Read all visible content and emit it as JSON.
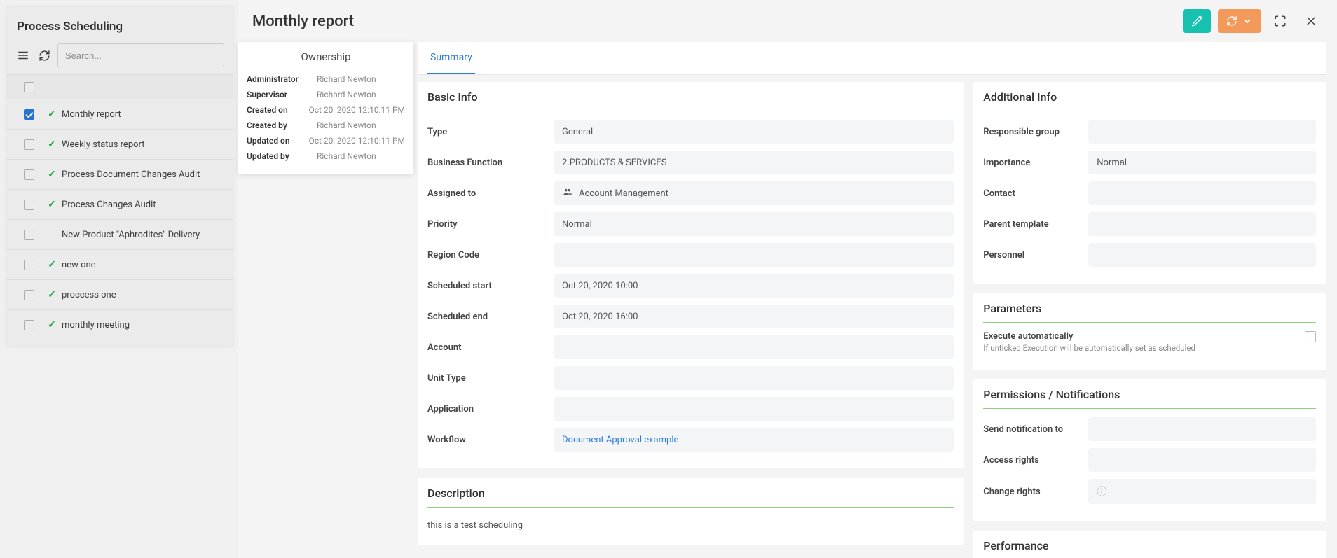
{
  "leftPanel": {
    "title": "Process Scheduling",
    "searchPlaceholder": "Search...",
    "rows": [
      {
        "label": "Monthly report",
        "checked": true,
        "status": "ok"
      },
      {
        "label": "Weekly status report",
        "checked": false,
        "status": "ok"
      },
      {
        "label": "Process Document Changes Audit",
        "checked": false,
        "status": "ok"
      },
      {
        "label": "Process Changes Audit",
        "checked": false,
        "status": "ok"
      },
      {
        "label": "New Product \"Aphrodites\" Delivery",
        "checked": false,
        "status": ""
      },
      {
        "label": "new one",
        "checked": false,
        "status": "ok"
      },
      {
        "label": "proccess one",
        "checked": false,
        "status": "ok"
      },
      {
        "label": "monthly meeting",
        "checked": false,
        "status": "ok"
      }
    ]
  },
  "drawer": {
    "title": "Monthly report",
    "tabs": {
      "summary": "Summary"
    }
  },
  "ownership": {
    "title": "Ownership",
    "rows": [
      {
        "label": "Administrator",
        "value": "Richard Newton"
      },
      {
        "label": "Supervisor",
        "value": "Richard Newton"
      },
      {
        "label": "Created on",
        "value": "Oct 20, 2020 12:10:11 PM"
      },
      {
        "label": "Created by",
        "value": "Richard Newton"
      },
      {
        "label": "Updated on",
        "value": "Oct 20, 2020 12:10:11 PM"
      },
      {
        "label": "Updated by",
        "value": "Richard Newton"
      }
    ]
  },
  "basicInfo": {
    "title": "Basic Info",
    "type": {
      "label": "Type",
      "value": "General"
    },
    "businessFunction": {
      "label": "Business Function",
      "value": "2.PRODUCTS & SERVICES"
    },
    "assignedTo": {
      "label": "Assigned to",
      "value": "Account Management"
    },
    "priority": {
      "label": "Priority",
      "value": "Normal"
    },
    "regionCode": {
      "label": "Region Code",
      "value": ""
    },
    "scheduledStart": {
      "label": "Scheduled start",
      "value": "Oct 20, 2020 10:00"
    },
    "scheduledEnd": {
      "label": "Scheduled end",
      "value": "Oct 20, 2020 16:00"
    },
    "account": {
      "label": "Account",
      "value": ""
    },
    "unitType": {
      "label": "Unit Type",
      "value": ""
    },
    "application": {
      "label": "Application",
      "value": ""
    },
    "workflow": {
      "label": "Workflow",
      "value": "Document Approval example"
    }
  },
  "description": {
    "title": "Description",
    "text": "this is a test scheduling"
  },
  "additionalInfo": {
    "title": "Additional Info",
    "responsibleGroup": {
      "label": "Responsible group",
      "value": ""
    },
    "importance": {
      "label": "Importance",
      "value": "Normal"
    },
    "contact": {
      "label": "Contact",
      "value": ""
    },
    "parentTemplate": {
      "label": "Parent template",
      "value": ""
    },
    "personnel": {
      "label": "Personnel",
      "value": ""
    }
  },
  "parameters": {
    "title": "Parameters",
    "executeAuto": {
      "label": "Execute automatically",
      "note": "If unticked Execution will be automatically set as scheduled"
    }
  },
  "permissions": {
    "title": "Permissions / Notifications",
    "sendNotification": {
      "label": "Send notification to",
      "value": ""
    },
    "accessRights": {
      "label": "Access rights",
      "value": ""
    },
    "changeRights": {
      "label": "Change rights",
      "value": ""
    }
  },
  "performance": {
    "title": "Performance"
  },
  "colors": {
    "accent": "#2a7de1",
    "teal": "#17c1b0",
    "orange": "#f39a5b",
    "green": "#22b14c",
    "cardUnderline": "#8bd17d"
  }
}
